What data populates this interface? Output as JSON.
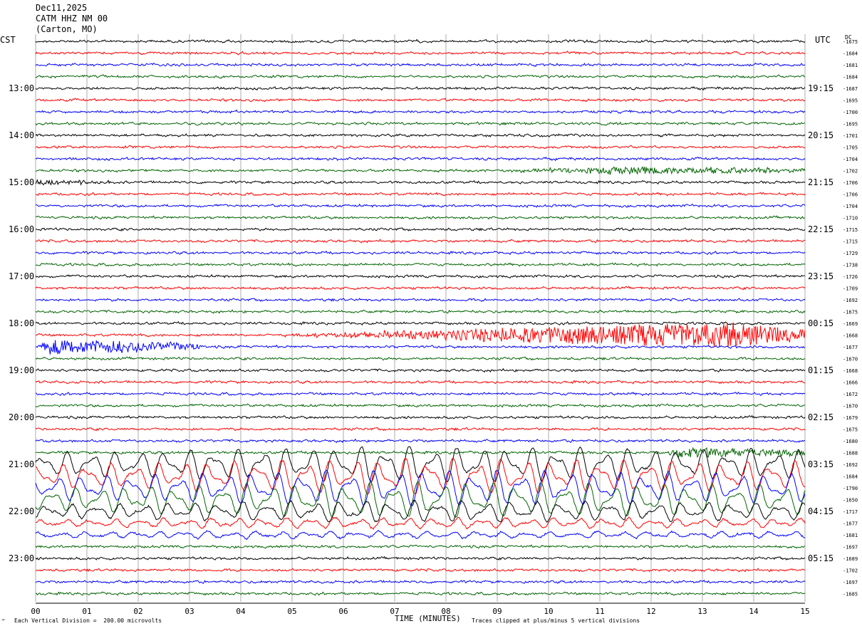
{
  "header": {
    "date": "Dec11,2025",
    "station": "CATM HHZ NM 00",
    "location": "(Carton, MO)"
  },
  "left_zone": "CST",
  "right_zone": "UTC",
  "dc_label": "DC",
  "footer": {
    "scale": "Each Vertical Division =  200.00 microvolts",
    "clip": "Traces clipped at plus/minus 5 vertical divisions",
    "glyph": "‴"
  },
  "colors": {
    "trace": [
      "#000000",
      "#ff0000",
      "#0000ff",
      "#006400"
    ],
    "grid": "#888888"
  },
  "chart_data": {
    "type": "line",
    "title": "CATM HHZ NM 00",
    "xlabel": "TIME (MINUTES)",
    "xlim": [
      0,
      15
    ],
    "x_ticks": [
      "00",
      "01",
      "02",
      "03",
      "04",
      "05",
      "06",
      "07",
      "08",
      "09",
      "10",
      "11",
      "12",
      "13",
      "14",
      "15"
    ],
    "left_hour_labels": [
      "13:00",
      "14:00",
      "15:00",
      "16:00",
      "17:00",
      "18:00",
      "19:00",
      "20:00",
      "21:00",
      "22:00",
      "23:00"
    ],
    "right_hour_labels": [
      "19:15",
      "20:15",
      "21:15",
      "22:15",
      "23:15",
      "00:15",
      "01:15",
      "02:15",
      "03:15",
      "04:15",
      "05:15"
    ],
    "trace_count": 48,
    "first_trace_label_index": 4,
    "dc_offsets": [
      -1675,
      -1684,
      -1681,
      -1684,
      -1687,
      -1695,
      -1700,
      -1695,
      -1701,
      -1705,
      -1704,
      -1702,
      -1706,
      -1706,
      -1704,
      -1710,
      -1715,
      -1715,
      -1729,
      -1738,
      -1726,
      -1709,
      -1692,
      -1675,
      -1669,
      -1668,
      -1677,
      -1670,
      -1668,
      -1666,
      -1672,
      -1670,
      -1679,
      -1675,
      -1680,
      -1688,
      -1692,
      -1684,
      -1790,
      -1650,
      -1717,
      -1677,
      -1681,
      -1697,
      -1689,
      -1702,
      -1697,
      -1685
    ],
    "events": [
      {
        "trace": 11,
        "start_min": 8.8,
        "peak_min": 11.5,
        "end_min": 15,
        "amplitude_div": 1.5
      },
      {
        "trace": 12,
        "start_min": 0,
        "peak_min": 0,
        "end_min": 1.5,
        "amplitude_div": 0.8
      },
      {
        "trace": 25,
        "start_min": 4.5,
        "peak_min": 13.5,
        "end_min": 15,
        "amplitude_div": 5
      },
      {
        "trace": 26,
        "start_min": 0,
        "peak_min": 0.3,
        "end_min": 3.2,
        "amplitude_div": 3
      },
      {
        "trace": 35,
        "start_min": 12.2,
        "peak_min": 12.6,
        "end_min": 15,
        "amplitude_div": 2
      },
      {
        "trace": 36,
        "start_min": 0,
        "peak_min": 7,
        "end_min": 15,
        "amplitude_div": 5,
        "type": "long_period"
      },
      {
        "trace": 37,
        "start_min": 0,
        "peak_min": 7,
        "end_min": 15,
        "amplitude_div": 5,
        "type": "long_period"
      },
      {
        "trace": 38,
        "start_min": 0,
        "peak_min": 7,
        "end_min": 15,
        "amplitude_div": 5,
        "type": "long_period"
      },
      {
        "trace": 39,
        "start_min": 0,
        "peak_min": 7,
        "end_min": 15,
        "amplitude_div": 5,
        "type": "long_period"
      },
      {
        "trace": 40,
        "start_min": 0,
        "peak_min": 7,
        "end_min": 15,
        "amplitude_div": 3,
        "type": "long_period"
      },
      {
        "trace": 41,
        "start_min": 0,
        "peak_min": 5,
        "end_min": 15,
        "amplitude_div": 1.5,
        "type": "long_period"
      },
      {
        "trace": 42,
        "start_min": 0,
        "peak_min": 3,
        "end_min": 15,
        "amplitude_div": 1,
        "type": "long_period"
      }
    ]
  }
}
